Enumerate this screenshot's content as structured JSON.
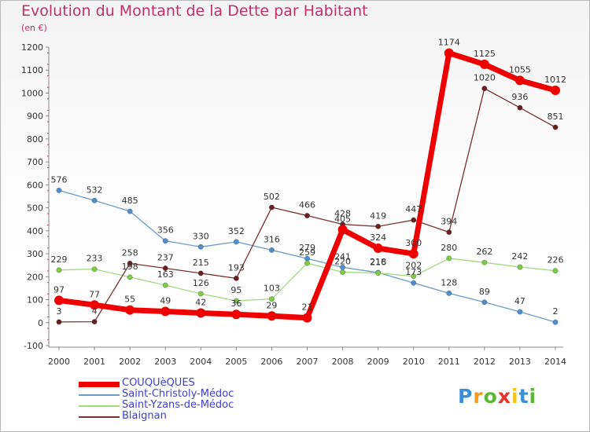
{
  "title": "Evolution du Montant de la Dette par Habitant",
  "subtitle": "(en €)",
  "logo": {
    "letters": [
      "P",
      "r",
      "o",
      "x",
      "i",
      "t",
      "i"
    ],
    "colors": [
      "#3a8fd6",
      "#f29a1a",
      "#5bb832",
      "#e8332a",
      "#f5c518",
      "#3a8fd6",
      "#5bb832"
    ]
  },
  "chart_data": {
    "type": "line",
    "title": "Evolution du Montant de la Dette par Habitant",
    "ylabel": "(en €)",
    "xlabel": "",
    "x": [
      "2000",
      "2001",
      "2002",
      "2003",
      "2004",
      "2005",
      "2006",
      "2007",
      "2008",
      "2009",
      "2010",
      "2011",
      "2012",
      "2013",
      "2014"
    ],
    "yticks": [
      "-100",
      "0",
      "100",
      "200",
      "300",
      "400",
      "500",
      "600",
      "700",
      "800",
      "900",
      "1000",
      "1100",
      "1200"
    ],
    "ylim": [
      -100,
      1200
    ],
    "grid": false,
    "legend_position": "bottom-left",
    "series": [
      {
        "name": "COUQUèQUES",
        "color": "#ee0000",
        "width": 7,
        "values": [
          97,
          77,
          55,
          49,
          42,
          36,
          29,
          21,
          405,
          324,
          300,
          1174,
          1125,
          1055,
          1012
        ],
        "labels": [
          "97",
          "77",
          "55",
          "49",
          "42",
          "36",
          "29",
          "21",
          "405",
          "324",
          "300",
          "1174",
          "1125",
          "1055",
          "1012"
        ]
      },
      {
        "name": "Saint-Christoly-Médoc",
        "color": "#6a9ccc",
        "marker": "#4a8fd0",
        "width": 1.3,
        "values": [
          576,
          532,
          485,
          356,
          330,
          352,
          316,
          279,
          241,
          218,
          173,
          128,
          89,
          47,
          2
        ],
        "labels": [
          "576",
          "532",
          "485",
          "356",
          "330",
          "352",
          "316",
          "279",
          "241",
          "218",
          "173",
          "128",
          "89",
          "47",
          "2"
        ]
      },
      {
        "name": "Saint-Yzans-de-Médoc",
        "color": "#a0dc7c",
        "marker": "#7ccc44",
        "width": 1.3,
        "values": [
          229,
          233,
          198,
          163,
          126,
          95,
          103,
          259,
          220,
          216,
          202,
          280,
          262,
          242,
          226
        ],
        "labels": [
          "229",
          "233",
          "198",
          "163",
          "126",
          "95",
          "103",
          "259",
          "220",
          "216",
          "202",
          "280",
          "262",
          "242",
          "226"
        ]
      },
      {
        "name": "Blaignan",
        "color": "#7a3030",
        "marker": "#6a1e1e",
        "width": 1.3,
        "values": [
          3,
          4,
          258,
          237,
          215,
          193,
          502,
          466,
          428,
          419,
          447,
          394,
          1020,
          936,
          851
        ],
        "labels": [
          "3",
          "4",
          "258",
          "237",
          "215",
          "193",
          "502",
          "466",
          "428",
          "419",
          "447",
          "394",
          "1020",
          "936",
          "851"
        ]
      }
    ]
  }
}
